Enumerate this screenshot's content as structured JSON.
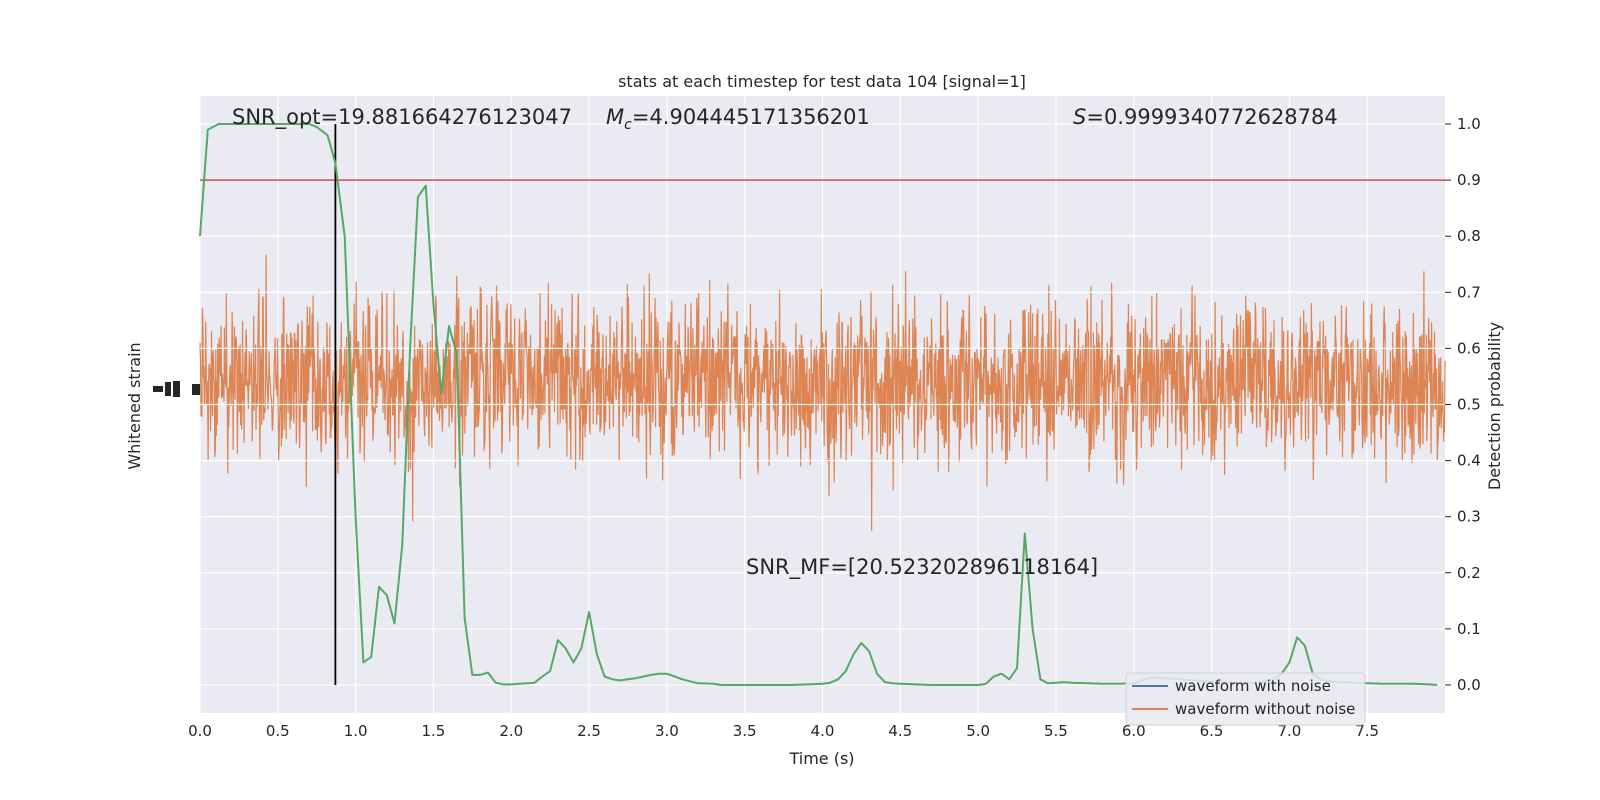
{
  "chart_data": {
    "type": "line",
    "title": "stats at each timestep for test data 104 [signal=1]",
    "xlabel": "Time (s)",
    "ylabel_left": "Whitened strain",
    "ylabel_right": "Detection probability",
    "xlim": [
      0,
      8
    ],
    "ylim_right": [
      -0.05,
      1.05
    ],
    "x_ticks": [
      "0.0",
      "0.5",
      "1.0",
      "1.5",
      "2.0",
      "2.5",
      "3.0",
      "3.5",
      "4.0",
      "4.5",
      "5.0",
      "5.5",
      "6.0",
      "6.5",
      "7.0",
      "7.5"
    ],
    "y_ticks_right": [
      "0.0",
      "0.1",
      "0.2",
      "0.3",
      "0.4",
      "0.5",
      "0.6",
      "0.7",
      "0.8",
      "0.9",
      "1.0"
    ],
    "grid": true,
    "threshold": 0.9,
    "vline_x": 0.87,
    "annotations": {
      "snr_opt": "SNR_opt=19.881664276123047",
      "mc_prefix": "M",
      "mc_sub": "c",
      "mc_value": "=4.904445171356201",
      "s_prefix": "S",
      "s_value": "=0.9999340772628784",
      "snr_mf": "SNR_MF=[20.523202896118164]"
    },
    "legend": {
      "position": "lower-right",
      "entries": [
        "waveform with noise",
        "waveform without noise"
      ]
    },
    "series": [
      {
        "name": "waveform with noise",
        "color": "#4c72b0",
        "kind": "strain-noise"
      },
      {
        "name": "waveform without noise",
        "color": "#dd8452",
        "kind": "strain-signal"
      },
      {
        "name": "",
        "color": "#55a868",
        "kind": "probability",
        "x": [
          0.0,
          0.05,
          0.12,
          0.2,
          0.3,
          0.4,
          0.5,
          0.6,
          0.7,
          0.75,
          0.82,
          0.87,
          0.93,
          1.0,
          1.05,
          1.1,
          1.15,
          1.2,
          1.25,
          1.3,
          1.35,
          1.4,
          1.45,
          1.5,
          1.55,
          1.6,
          1.65,
          1.7,
          1.75,
          1.8,
          1.85,
          1.9,
          1.95,
          2.0,
          2.05,
          2.1,
          2.15,
          2.2,
          2.25,
          2.3,
          2.35,
          2.4,
          2.45,
          2.5,
          2.55,
          2.6,
          2.65,
          2.7,
          2.75,
          2.8,
          2.85,
          2.9,
          2.95,
          3.0,
          3.1,
          3.2,
          3.3,
          3.35,
          3.4,
          3.5,
          3.6,
          3.7,
          3.8,
          3.9,
          4.0,
          4.05,
          4.1,
          4.15,
          4.2,
          4.25,
          4.3,
          4.35,
          4.4,
          4.45,
          4.5,
          4.6,
          4.7,
          4.8,
          4.9,
          5.0,
          5.05,
          5.1,
          5.15,
          5.2,
          5.25,
          5.3,
          5.35,
          5.4,
          5.45,
          5.5,
          5.55,
          5.6,
          5.7,
          5.8,
          5.9,
          6.0,
          6.1,
          6.2,
          6.3,
          6.4,
          6.5,
          6.6,
          6.7,
          6.8,
          6.9,
          6.95,
          7.0,
          7.05,
          7.1,
          7.15,
          7.2,
          7.3,
          7.4,
          7.5,
          7.6,
          7.7,
          7.8,
          7.9,
          7.95
        ],
        "y": [
          0.8,
          0.99,
          1.0,
          1.0,
          1.0,
          1.0,
          1.0,
          1.0,
          1.0,
          0.995,
          0.98,
          0.93,
          0.8,
          0.3,
          0.04,
          0.05,
          0.175,
          0.16,
          0.11,
          0.25,
          0.6,
          0.87,
          0.89,
          0.68,
          0.52,
          0.64,
          0.59,
          0.12,
          0.018,
          0.018,
          0.022,
          0.004,
          0.001,
          0.001,
          0.002,
          0.003,
          0.004,
          0.015,
          0.025,
          0.08,
          0.065,
          0.04,
          0.065,
          0.13,
          0.055,
          0.015,
          0.01,
          0.008,
          0.01,
          0.012,
          0.015,
          0.018,
          0.02,
          0.02,
          0.01,
          0.003,
          0.002,
          0.0,
          0.0,
          0.0,
          0.0,
          0.0,
          0.0,
          0.001,
          0.002,
          0.004,
          0.01,
          0.025,
          0.055,
          0.075,
          0.06,
          0.02,
          0.005,
          0.003,
          0.002,
          0.001,
          0.0,
          0.0,
          0.0,
          0.0,
          0.002,
          0.015,
          0.02,
          0.01,
          0.03,
          0.27,
          0.1,
          0.01,
          0.003,
          0.004,
          0.005,
          0.004,
          0.003,
          0.002,
          0.002,
          0.003,
          0.013,
          0.012,
          0.01,
          0.008,
          0.006,
          0.005,
          0.003,
          0.004,
          0.01,
          0.02,
          0.04,
          0.085,
          0.07,
          0.02,
          0.01,
          0.005,
          0.004,
          0.003,
          0.002,
          0.002,
          0.002,
          0.001,
          0.0
        ]
      }
    ]
  }
}
